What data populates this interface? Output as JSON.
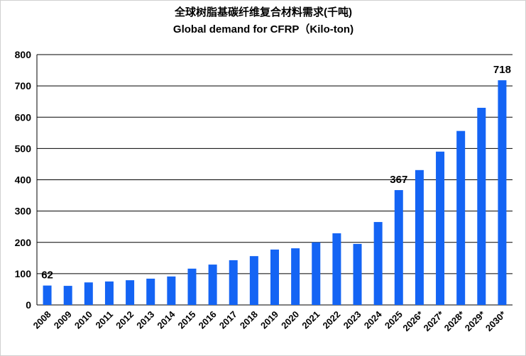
{
  "chart_data": {
    "type": "bar",
    "title": "全球树脂基碳纤维复合材料需求(千吨)",
    "subtitle": "Global demand for CFRP（Kilo-ton)",
    "categories": [
      "2008",
      "2009",
      "2010",
      "2011",
      "2012",
      "2013",
      "2014",
      "2015",
      "2016",
      "2017",
      "2018",
      "2019",
      "2020",
      "2021",
      "2022",
      "2023",
      "2024",
      "2025",
      "2026*",
      "2027*",
      "2028*",
      "2029*",
      "2030*"
    ],
    "values": [
      62,
      61,
      72,
      75,
      79,
      84,
      91,
      116,
      129,
      143,
      156,
      177,
      181,
      200,
      229,
      195,
      265,
      367,
      431,
      490,
      556,
      630,
      718
    ],
    "value_labels": [
      "62",
      null,
      null,
      null,
      null,
      null,
      null,
      null,
      null,
      null,
      null,
      null,
      null,
      null,
      null,
      null,
      null,
      "367",
      null,
      null,
      null,
      null,
      "718"
    ],
    "color": "#1464f4",
    "ylim": [
      0,
      800
    ],
    "yticks": [
      0,
      100,
      200,
      300,
      400,
      500,
      600,
      700,
      800
    ],
    "grid": true
  }
}
